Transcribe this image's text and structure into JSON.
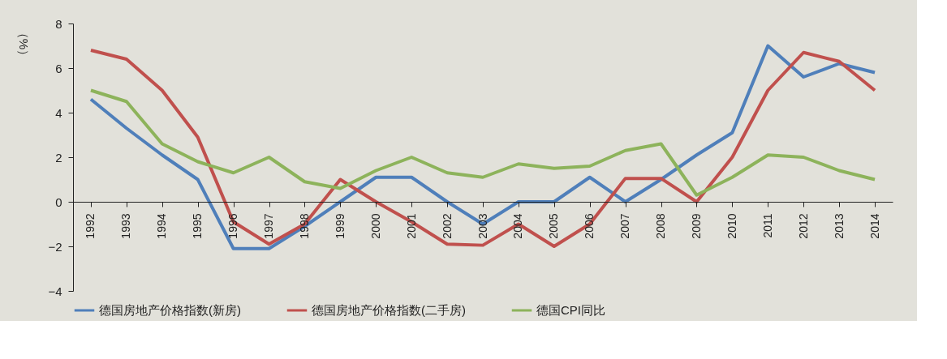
{
  "chart_data": {
    "type": "line",
    "ylabel": "（%）",
    "categories": [
      "1992",
      "1993",
      "1994",
      "1995",
      "1996",
      "1997",
      "1998",
      "1999",
      "2000",
      "2001",
      "2002",
      "2003",
      "2004",
      "2005",
      "2006",
      "2007",
      "2008",
      "2009",
      "2010",
      "2011",
      "2012",
      "2013",
      "2014"
    ],
    "series": [
      {
        "name": "德国房地产价格指数(新房)",
        "color": "#4f7fba",
        "values": [
          4.6,
          3.3,
          2.1,
          1.0,
          -2.1,
          -2.1,
          -1.1,
          0.0,
          1.1,
          1.1,
          0.0,
          -1.0,
          0.0,
          0.0,
          1.1,
          0.0,
          1.0,
          2.1,
          3.1,
          7.0,
          5.6,
          6.2,
          5.8
        ]
      },
      {
        "name": "德国房地产价格指数(二手房)",
        "color": "#c0504d",
        "values": [
          6.8,
          6.4,
          5.0,
          2.9,
          -0.9,
          -1.9,
          -1.0,
          1.0,
          0.0,
          -0.9,
          -1.9,
          -1.95,
          -1.0,
          -2.0,
          -1.0,
          1.05,
          1.05,
          0.0,
          2.0,
          5.0,
          6.7,
          6.3,
          5.0
        ]
      },
      {
        "name": "德国CPI同比",
        "color": "#8db35b",
        "values": [
          5.0,
          4.5,
          2.6,
          1.8,
          1.3,
          2.0,
          0.9,
          0.6,
          1.4,
          2.0,
          1.3,
          1.1,
          1.7,
          1.5,
          1.6,
          2.3,
          2.6,
          0.3,
          1.1,
          2.1,
          2.0,
          1.4,
          1.0
        ]
      }
    ],
    "ylim": [
      -4,
      8
    ],
    "yticks": [
      -4,
      -2,
      0,
      2,
      4,
      6,
      8
    ],
    "legend": "bottom",
    "marker": "none",
    "line_style": "solid"
  }
}
